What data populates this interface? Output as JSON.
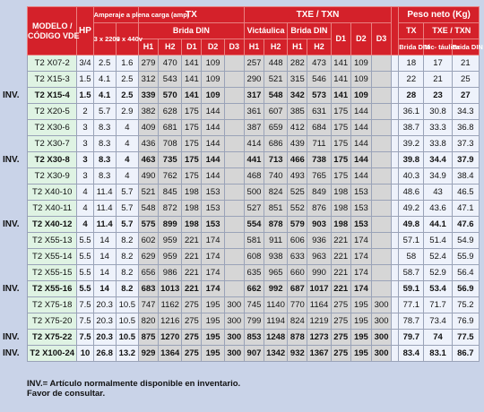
{
  "header": {
    "modelo": "MODELO /",
    "codigo": "CÓDIGO VDE",
    "hp": "HP",
    "amperaje": "Amperaje a plena carga (amp)",
    "v220": "3 x 220v",
    "v440": "3 x 440v",
    "tx": "TX",
    "brida_din_tx": "Brida DIN",
    "txe": "TXE / TXN",
    "victaulica": "Victáulica",
    "brida_din_txe": "Brida DIN",
    "peso": "Peso neto (Kg)",
    "peso_tx": "TX",
    "peso_txe": "TXE / TXN",
    "peso_brida_din": "Brida DIN",
    "peso_victaulica": "Vic- táulica",
    "peso_brida_din2": "Brida DIN",
    "h1": "H1",
    "h2": "H2",
    "d1": "D1",
    "d2": "D2",
    "d3": "D3"
  },
  "rows": [
    {
      "inv": "",
      "bold": false,
      "cells": [
        "T2 X07-2",
        "3/4",
        "2.5",
        "1.6",
        "279",
        "470",
        "141",
        "109",
        "",
        "257",
        "448",
        "282",
        "473",
        "141",
        "109",
        "",
        "",
        "18",
        "17",
        "21"
      ]
    },
    {
      "inv": "",
      "bold": false,
      "cells": [
        "T2 X15-3",
        "1.5",
        "4.1",
        "2.5",
        "312",
        "543",
        "141",
        "109",
        "",
        "290",
        "521",
        "315",
        "546",
        "141",
        "109",
        "",
        "",
        "22",
        "21",
        "25"
      ]
    },
    {
      "inv": "INV.",
      "bold": true,
      "cells": [
        "T2 X15-4",
        "1.5",
        "4.1",
        "2.5",
        "339",
        "570",
        "141",
        "109",
        "",
        "317",
        "548",
        "342",
        "573",
        "141",
        "109",
        "",
        "",
        "28",
        "23",
        "27"
      ]
    },
    {
      "inv": "",
      "bold": false,
      "cells": [
        "T2 X20-5",
        "2",
        "5.7",
        "2.9",
        "382",
        "628",
        "175",
        "144",
        "",
        "361",
        "607",
        "385",
        "631",
        "175",
        "144",
        "",
        "",
        "36.1",
        "30.8",
        "34.3"
      ]
    },
    {
      "inv": "",
      "bold": false,
      "cells": [
        "T2 X30-6",
        "3",
        "8.3",
        "4",
        "409",
        "681",
        "175",
        "144",
        "",
        "387",
        "659",
        "412",
        "684",
        "175",
        "144",
        "",
        "",
        "38.7",
        "33.3",
        "36.8"
      ]
    },
    {
      "inv": "",
      "bold": false,
      "cells": [
        "T2 X30-7",
        "3",
        "8.3",
        "4",
        "436",
        "708",
        "175",
        "144",
        "",
        "414",
        "686",
        "439",
        "711",
        "175",
        "144",
        "",
        "",
        "39.2",
        "33.8",
        "37.3"
      ]
    },
    {
      "inv": "INV.",
      "bold": true,
      "cells": [
        "T2 X30-8",
        "3",
        "8.3",
        "4",
        "463",
        "735",
        "175",
        "144",
        "",
        "441",
        "713",
        "466",
        "738",
        "175",
        "144",
        "",
        "",
        "39.8",
        "34.4",
        "37.9"
      ]
    },
    {
      "inv": "",
      "bold": false,
      "cells": [
        "T2 X30-9",
        "3",
        "8.3",
        "4",
        "490",
        "762",
        "175",
        "144",
        "",
        "468",
        "740",
        "493",
        "765",
        "175",
        "144",
        "",
        "",
        "40.3",
        "34.9",
        "38.4"
      ]
    },
    {
      "inv": "",
      "bold": false,
      "cells": [
        "T2 X40-10",
        "4",
        "11.4",
        "5.7",
        "521",
        "845",
        "198",
        "153",
        "",
        "500",
        "824",
        "525",
        "849",
        "198",
        "153",
        "",
        "",
        "48.6",
        "43",
        "46.5"
      ]
    },
    {
      "inv": "",
      "bold": false,
      "cells": [
        "T2 X40-11",
        "4",
        "11.4",
        "5.7",
        "548",
        "872",
        "198",
        "153",
        "",
        "527",
        "851",
        "552",
        "876",
        "198",
        "153",
        "",
        "",
        "49.2",
        "43.6",
        "47.1"
      ]
    },
    {
      "inv": "INV.",
      "bold": true,
      "cells": [
        "T2 X40-12",
        "4",
        "11.4",
        "5.7",
        "575",
        "899",
        "198",
        "153",
        "",
        "554",
        "878",
        "579",
        "903",
        "198",
        "153",
        "",
        "",
        "49.8",
        "44.1",
        "47.6"
      ]
    },
    {
      "inv": "",
      "bold": false,
      "cells": [
        "T2 X55-13",
        "5.5",
        "14",
        "8.2",
        "602",
        "959",
        "221",
        "174",
        "",
        "581",
        "911",
        "606",
        "936",
        "221",
        "174",
        "",
        "",
        "57.1",
        "51.4",
        "54.9"
      ]
    },
    {
      "inv": "",
      "bold": false,
      "cells": [
        "T2 X55-14",
        "5.5",
        "14",
        "8.2",
        "629",
        "959",
        "221",
        "174",
        "",
        "608",
        "938",
        "633",
        "963",
        "221",
        "174",
        "",
        "",
        "58",
        "52.4",
        "55.9"
      ]
    },
    {
      "inv": "",
      "bold": false,
      "cells": [
        "T2 X55-15",
        "5.5",
        "14",
        "8.2",
        "656",
        "986",
        "221",
        "174",
        "",
        "635",
        "965",
        "660",
        "990",
        "221",
        "174",
        "",
        "",
        "58.7",
        "52.9",
        "56.4"
      ]
    },
    {
      "inv": "INV.",
      "bold": true,
      "cells": [
        "T2 X55-16",
        "5.5",
        "14",
        "8.2",
        "683",
        "1013",
        "221",
        "174",
        "",
        "662",
        "992",
        "687",
        "1017",
        "221",
        "174",
        "",
        "",
        "59.1",
        "53.4",
        "56.9"
      ]
    },
    {
      "inv": "",
      "bold": false,
      "cells": [
        "T2 X75-18",
        "7.5",
        "20.3",
        "10.5",
        "747",
        "1162",
        "275",
        "195",
        "300",
        "745",
        "1140",
        "770",
        "1164",
        "275",
        "195",
        "300",
        "",
        "77.1",
        "71.7",
        "75.2"
      ]
    },
    {
      "inv": "",
      "bold": false,
      "cells": [
        "T2 X75-20",
        "7.5",
        "20.3",
        "10.5",
        "820",
        "1216",
        "275",
        "195",
        "300",
        "799",
        "1194",
        "824",
        "1219",
        "275",
        "195",
        "300",
        "",
        "78.7",
        "73.4",
        "76.9"
      ]
    },
    {
      "inv": "INV.",
      "bold": true,
      "cells": [
        "T2 X75-22",
        "7.5",
        "20.3",
        "10.5",
        "875",
        "1270",
        "275",
        "195",
        "300",
        "853",
        "1248",
        "878",
        "1273",
        "275",
        "195",
        "300",
        "",
        "79.7",
        "74",
        "77.5"
      ]
    },
    {
      "inv": "INV.",
      "bold": true,
      "cells": [
        "T2 X100-24",
        "10",
        "26.8",
        "13.2",
        "929",
        "1364",
        "275",
        "195",
        "300",
        "907",
        "1342",
        "932",
        "1367",
        "275",
        "195",
        "300",
        "",
        "83.4",
        "83.1",
        "86.7"
      ]
    }
  ],
  "footer": {
    "line1": "INV.= Artículo normalmente disponible en inventario.",
    "line2": "Favor de consultar."
  },
  "colors": {
    "header": "#d4212a",
    "model_bg": "#dff3e3",
    "page_bg": "#c9d3e8",
    "dim_bg": "#d6d6d6"
  }
}
